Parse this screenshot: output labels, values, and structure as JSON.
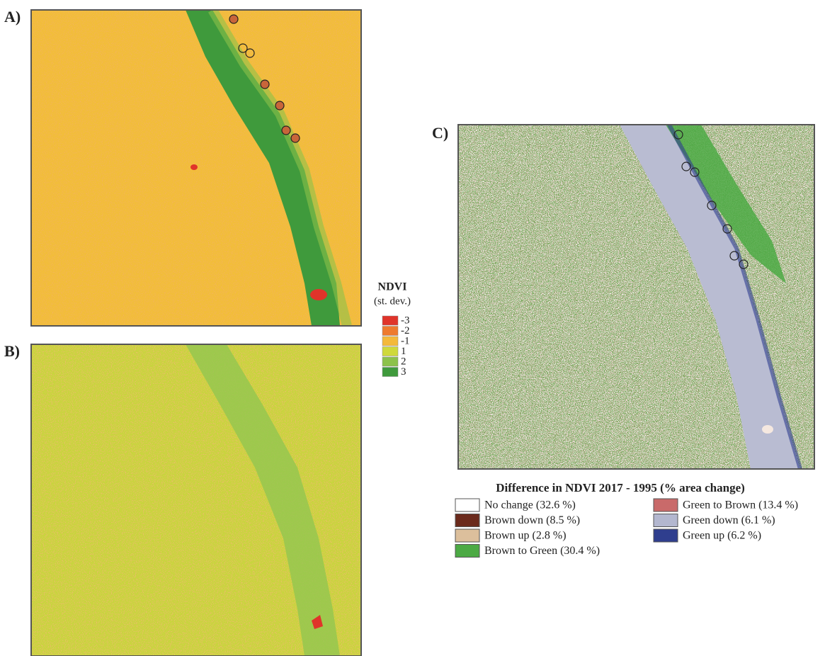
{
  "panels": [
    {
      "label": "A)"
    },
    {
      "label": "B)"
    },
    {
      "label": "C)"
    }
  ],
  "ndvi_legend": {
    "title": "NDVI",
    "subtitle": "(st. dev.)",
    "items": [
      {
        "label": "-3",
        "color": "#e0342a"
      },
      {
        "label": "-2",
        "color": "#ee7a2e"
      },
      {
        "label": "-1",
        "color": "#f4b93a"
      },
      {
        "label": "1",
        "color": "#cfd93a"
      },
      {
        "label": "2",
        "color": "#8cc24a"
      },
      {
        "label": "3",
        "color": "#3f9a3c"
      }
    ]
  },
  "change_legend": {
    "title": "Difference in NDVI 2017 - 1995 (% area change)",
    "items": [
      {
        "label": "No change (32.6 %)",
        "color": "#ffffff"
      },
      {
        "label": "Brown down (8.5 %)",
        "color": "#6b2a1c"
      },
      {
        "label": "Brown up (2.8 %)",
        "color": "#dcbf9c"
      },
      {
        "label": "Brown to Green (30.4 %)",
        "color": "#4caa44"
      },
      {
        "label": "Green to Brown (13.4 %)",
        "color": "#c96a6a"
      },
      {
        "label": "Green down (6.1 %)",
        "color": "#b3b7cf"
      },
      {
        "label": "Green up (6.2 %)",
        "color": "#2f3e8e"
      }
    ]
  }
}
